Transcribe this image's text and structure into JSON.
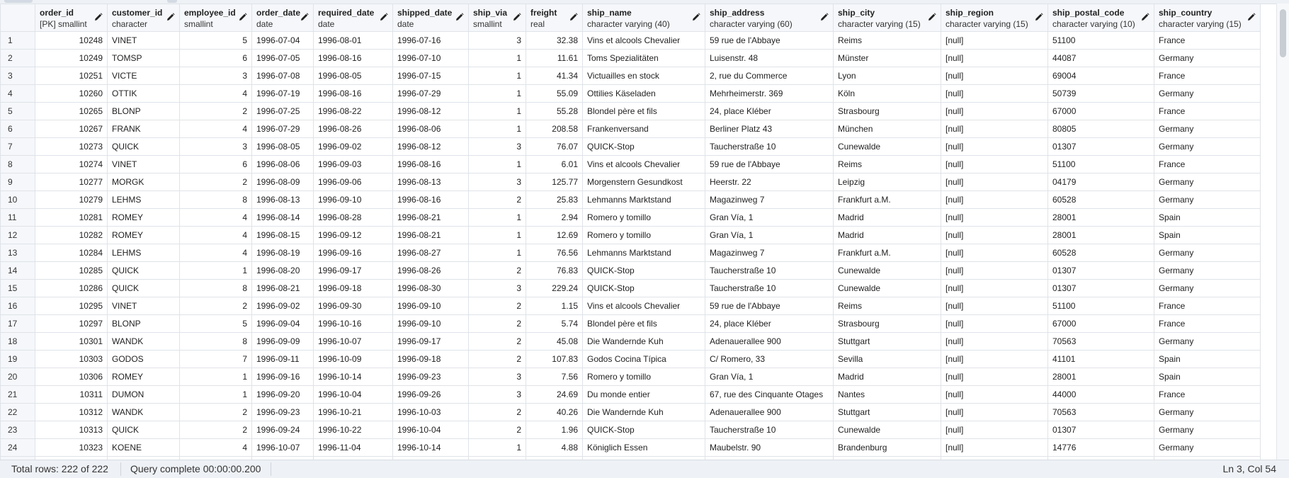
{
  "columns": [
    {
      "name": "",
      "type": ""
    },
    {
      "name": "order_id",
      "type": "[PK] smallint"
    },
    {
      "name": "customer_id",
      "type": "character"
    },
    {
      "name": "employee_id",
      "type": "smallint"
    },
    {
      "name": "order_date",
      "type": "date"
    },
    {
      "name": "required_date",
      "type": "date"
    },
    {
      "name": "shipped_date",
      "type": "date"
    },
    {
      "name": "ship_via",
      "type": "smallint"
    },
    {
      "name": "freight",
      "type": "real"
    },
    {
      "name": "ship_name",
      "type": "character varying (40)"
    },
    {
      "name": "ship_address",
      "type": "character varying (60)"
    },
    {
      "name": "ship_city",
      "type": "character varying (15)"
    },
    {
      "name": "ship_region",
      "type": "character varying (15)"
    },
    {
      "name": "ship_postal_code",
      "type": "character varying (10)"
    },
    {
      "name": "ship_country",
      "type": "character varying (15)"
    }
  ],
  "rows": [
    [
      "1",
      "10248",
      "VINET",
      "5",
      "1996-07-04",
      "1996-08-01",
      "1996-07-16",
      "3",
      "32.38",
      "Vins et alcools Chevalier",
      "59 rue de l'Abbaye",
      "Reims",
      "[null]",
      "51100",
      "France"
    ],
    [
      "2",
      "10249",
      "TOMSP",
      "6",
      "1996-07-05",
      "1996-08-16",
      "1996-07-10",
      "1",
      "11.61",
      "Toms Spezialitäten",
      "Luisenstr. 48",
      "Münster",
      "[null]",
      "44087",
      "Germany"
    ],
    [
      "3",
      "10251",
      "VICTE",
      "3",
      "1996-07-08",
      "1996-08-05",
      "1996-07-15",
      "1",
      "41.34",
      "Victuailles en stock",
      "2, rue du Commerce",
      "Lyon",
      "[null]",
      "69004",
      "France"
    ],
    [
      "4",
      "10260",
      "OTTIK",
      "4",
      "1996-07-19",
      "1996-08-16",
      "1996-07-29",
      "1",
      "55.09",
      "Ottilies Käseladen",
      "Mehrheimerstr. 369",
      "Köln",
      "[null]",
      "50739",
      "Germany"
    ],
    [
      "5",
      "10265",
      "BLONP",
      "2",
      "1996-07-25",
      "1996-08-22",
      "1996-08-12",
      "1",
      "55.28",
      "Blondel père et fils",
      "24, place Kléber",
      "Strasbourg",
      "[null]",
      "67000",
      "France"
    ],
    [
      "6",
      "10267",
      "FRANK",
      "4",
      "1996-07-29",
      "1996-08-26",
      "1996-08-06",
      "1",
      "208.58",
      "Frankenversand",
      "Berliner Platz 43",
      "München",
      "[null]",
      "80805",
      "Germany"
    ],
    [
      "7",
      "10273",
      "QUICK",
      "3",
      "1996-08-05",
      "1996-09-02",
      "1996-08-12",
      "3",
      "76.07",
      "QUICK-Stop",
      "Taucherstraße 10",
      "Cunewalde",
      "[null]",
      "01307",
      "Germany"
    ],
    [
      "8",
      "10274",
      "VINET",
      "6",
      "1996-08-06",
      "1996-09-03",
      "1996-08-16",
      "1",
      "6.01",
      "Vins et alcools Chevalier",
      "59 rue de l'Abbaye",
      "Reims",
      "[null]",
      "51100",
      "France"
    ],
    [
      "9",
      "10277",
      "MORGK",
      "2",
      "1996-08-09",
      "1996-09-06",
      "1996-08-13",
      "3",
      "125.77",
      "Morgenstern Gesundkost",
      "Heerstr. 22",
      "Leipzig",
      "[null]",
      "04179",
      "Germany"
    ],
    [
      "10",
      "10279",
      "LEHMS",
      "8",
      "1996-08-13",
      "1996-09-10",
      "1996-08-16",
      "2",
      "25.83",
      "Lehmanns Marktstand",
      "Magazinweg 7",
      "Frankfurt a.M.",
      "[null]",
      "60528",
      "Germany"
    ],
    [
      "11",
      "10281",
      "ROMEY",
      "4",
      "1996-08-14",
      "1996-08-28",
      "1996-08-21",
      "1",
      "2.94",
      "Romero y tomillo",
      "Gran Vía, 1",
      "Madrid",
      "[null]",
      "28001",
      "Spain"
    ],
    [
      "12",
      "10282",
      "ROMEY",
      "4",
      "1996-08-15",
      "1996-09-12",
      "1996-08-21",
      "1",
      "12.69",
      "Romero y tomillo",
      "Gran Vía, 1",
      "Madrid",
      "[null]",
      "28001",
      "Spain"
    ],
    [
      "13",
      "10284",
      "LEHMS",
      "4",
      "1996-08-19",
      "1996-09-16",
      "1996-08-27",
      "1",
      "76.56",
      "Lehmanns Marktstand",
      "Magazinweg 7",
      "Frankfurt a.M.",
      "[null]",
      "60528",
      "Germany"
    ],
    [
      "14",
      "10285",
      "QUICK",
      "1",
      "1996-08-20",
      "1996-09-17",
      "1996-08-26",
      "2",
      "76.83",
      "QUICK-Stop",
      "Taucherstraße 10",
      "Cunewalde",
      "[null]",
      "01307",
      "Germany"
    ],
    [
      "15",
      "10286",
      "QUICK",
      "8",
      "1996-08-21",
      "1996-09-18",
      "1996-08-30",
      "3",
      "229.24",
      "QUICK-Stop",
      "Taucherstraße 10",
      "Cunewalde",
      "[null]",
      "01307",
      "Germany"
    ],
    [
      "16",
      "10295",
      "VINET",
      "2",
      "1996-09-02",
      "1996-09-30",
      "1996-09-10",
      "2",
      "1.15",
      "Vins et alcools Chevalier",
      "59 rue de l'Abbaye",
      "Reims",
      "[null]",
      "51100",
      "France"
    ],
    [
      "17",
      "10297",
      "BLONP",
      "5",
      "1996-09-04",
      "1996-10-16",
      "1996-09-10",
      "2",
      "5.74",
      "Blondel père et fils",
      "24, place Kléber",
      "Strasbourg",
      "[null]",
      "67000",
      "France"
    ],
    [
      "18",
      "10301",
      "WANDK",
      "8",
      "1996-09-09",
      "1996-10-07",
      "1996-09-17",
      "2",
      "45.08",
      "Die Wandernde Kuh",
      "Adenauerallee 900",
      "Stuttgart",
      "[null]",
      "70563",
      "Germany"
    ],
    [
      "19",
      "10303",
      "GODOS",
      "7",
      "1996-09-11",
      "1996-10-09",
      "1996-09-18",
      "2",
      "107.83",
      "Godos Cocina Típica",
      "C/ Romero, 33",
      "Sevilla",
      "[null]",
      "41101",
      "Spain"
    ],
    [
      "20",
      "10306",
      "ROMEY",
      "1",
      "1996-09-16",
      "1996-10-14",
      "1996-09-23",
      "3",
      "7.56",
      "Romero y tomillo",
      "Gran Vía, 1",
      "Madrid",
      "[null]",
      "28001",
      "Spain"
    ],
    [
      "21",
      "10311",
      "DUMON",
      "1",
      "1996-09-20",
      "1996-10-04",
      "1996-09-26",
      "3",
      "24.69",
      "Du monde entier",
      "67, rue des Cinquante Otages",
      "Nantes",
      "[null]",
      "44000",
      "France"
    ],
    [
      "22",
      "10312",
      "WANDK",
      "2",
      "1996-09-23",
      "1996-10-21",
      "1996-10-03",
      "2",
      "40.26",
      "Die Wandernde Kuh",
      "Adenauerallee 900",
      "Stuttgart",
      "[null]",
      "70563",
      "Germany"
    ],
    [
      "23",
      "10313",
      "QUICK",
      "2",
      "1996-09-24",
      "1996-10-22",
      "1996-10-04",
      "2",
      "1.96",
      "QUICK-Stop",
      "Taucherstraße 10",
      "Cunewalde",
      "[null]",
      "01307",
      "Germany"
    ],
    [
      "24",
      "10323",
      "KOENE",
      "4",
      "1996-10-07",
      "1996-11-04",
      "1996-10-14",
      "1",
      "4.88",
      "Königlich Essen",
      "Maubelstr. 90",
      "Brandenburg",
      "[null]",
      "14776",
      "Germany"
    ]
  ],
  "status": {
    "total_rows": "Total rows: 222 of 222",
    "query_status": "Query complete 00:00:00.200",
    "cursor": "Ln 3, Col 54"
  },
  "icons": {
    "edit": "pencil-icon"
  },
  "colors": {
    "header_bg": "#f5f7fa",
    "border": "#dfe3e8",
    "null_text": "#a9b0b8",
    "status_bg": "#eef1f5"
  }
}
